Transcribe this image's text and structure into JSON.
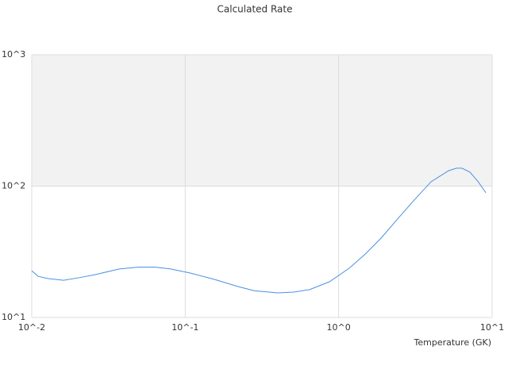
{
  "chart_data": {
    "type": "line",
    "title": "Calculated Rate",
    "x_label": "Temperature (GK)",
    "x": [
      0.01,
      0.011,
      0.0127,
      0.0161,
      0.0204,
      0.0259,
      0.0371,
      0.0499,
      0.0634,
      0.0804,
      0.108,
      0.155,
      0.221,
      0.281,
      0.401,
      0.509,
      0.646,
      0.87,
      1.17,
      1.49,
      1.89,
      2.39,
      3.04,
      4.0,
      5.2,
      5.85,
      6.36,
      7.16,
      8.07,
      9.1
    ],
    "series": [
      {
        "color": "#4a90e2",
        "values": [
          22.7,
          20.6,
          19.8,
          19.2,
          20.1,
          21.2,
          23.4,
          24.2,
          24.2,
          23.4,
          21.8,
          19.5,
          17.2,
          16.0,
          15.4,
          15.6,
          16.3,
          18.7,
          23.7,
          30.4,
          40.2,
          55.3,
          76.2,
          108,
          131,
          137,
          137,
          128,
          109,
          89
        ]
      }
    ],
    "xlim": [
      0.01,
      10
    ],
    "ylim": [
      10,
      1000
    ],
    "xlog": true,
    "ylog": true,
    "xticks": [
      {
        "value": 0.01,
        "label": "10^-2"
      },
      {
        "value": 0.1,
        "label": "10^-1"
      },
      {
        "value": 1,
        "label": "10^0"
      },
      {
        "value": 10,
        "label": "10^1"
      }
    ],
    "yticks": [
      {
        "value": 10,
        "label": "10^1"
      },
      {
        "value": 100,
        "label": "10^2"
      },
      {
        "value": 1000,
        "label": "10^3"
      }
    ],
    "grid": true,
    "alternate_band_color": "#f2f2f2"
  }
}
